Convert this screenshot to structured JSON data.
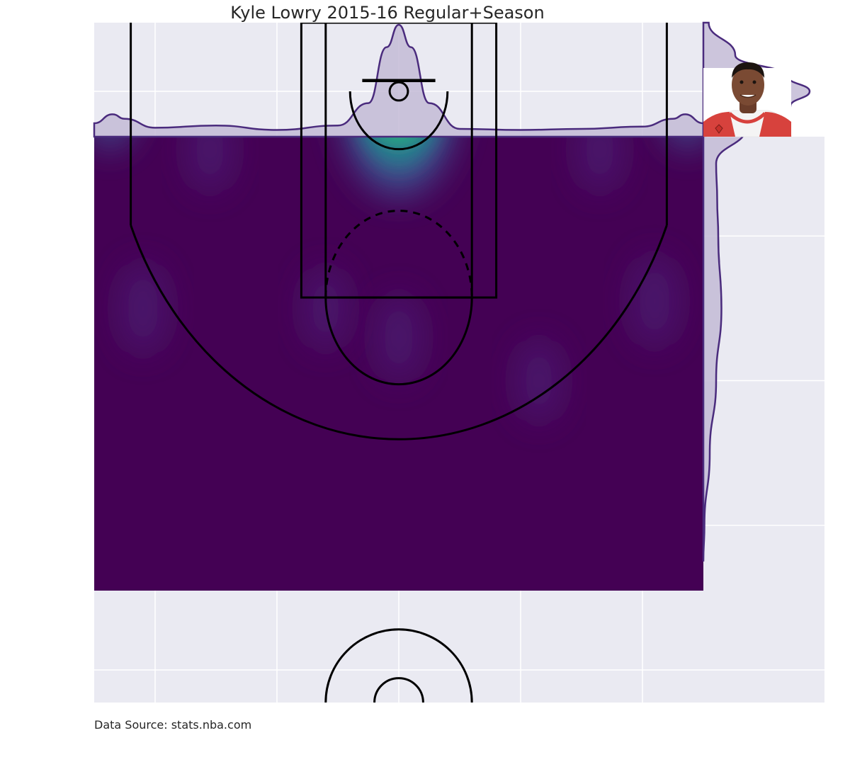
{
  "chart_data": {
    "type": "heatmap",
    "title": "Kyle Lowry 2015-16 Regular+Season",
    "footer": "Data Source: stats.nba.com",
    "player_image": "player-headshot",
    "colormap": "viridis",
    "colors": {
      "background_panel": "#eaeaf2",
      "grid": "#ffffff",
      "density_low": "#440154",
      "density_high": "#fde725",
      "marginal_fill": "#c3bbd6",
      "marginal_line": "#4a2b7d",
      "court_lines": "#000000"
    },
    "xlim": [
      -250,
      250
    ],
    "ylim": [
      422.5,
      -47.5
    ],
    "kde_xlim": [
      -250,
      250
    ],
    "kde_ylim": [
      -47.5,
      325
    ],
    "grid": true,
    "density_peaks": [
      {
        "x": 0,
        "y": 0,
        "weight": 1.0
      },
      {
        "x": -237,
        "y": 0,
        "weight": 0.22
      },
      {
        "x": 237,
        "y": 0,
        "weight": 0.22
      },
      {
        "x": -210,
        "y": 150,
        "weight": 0.1
      },
      {
        "x": 210,
        "y": 145,
        "weight": 0.1
      },
      {
        "x": -155,
        "y": 40,
        "weight": 0.07
      },
      {
        "x": 165,
        "y": 40,
        "weight": 0.07
      },
      {
        "x": 0,
        "y": 170,
        "weight": 0.08
      },
      {
        "x": -60,
        "y": 150,
        "weight": 0.06
      },
      {
        "x": 115,
        "y": 200,
        "weight": 0.06
      }
    ],
    "marginal_x": {
      "x": [
        -250,
        -235,
        -225,
        -200,
        -150,
        -100,
        -50,
        -25,
        -10,
        0,
        10,
        25,
        50,
        100,
        150,
        200,
        225,
        235,
        250
      ],
      "density": [
        0.12,
        0.2,
        0.16,
        0.08,
        0.1,
        0.06,
        0.1,
        0.3,
        0.8,
        1.0,
        0.8,
        0.3,
        0.07,
        0.06,
        0.07,
        0.09,
        0.16,
        0.2,
        0.12
      ]
    },
    "marginal_y": {
      "y": [
        -47.5,
        -25,
        -10,
        0,
        10,
        25,
        50,
        75,
        100,
        150,
        200,
        250,
        300,
        325
      ],
      "density": [
        0.05,
        0.3,
        0.8,
        1.0,
        0.82,
        0.4,
        0.12,
        0.13,
        0.14,
        0.17,
        0.12,
        0.06,
        0.01,
        0.0
      ]
    }
  }
}
